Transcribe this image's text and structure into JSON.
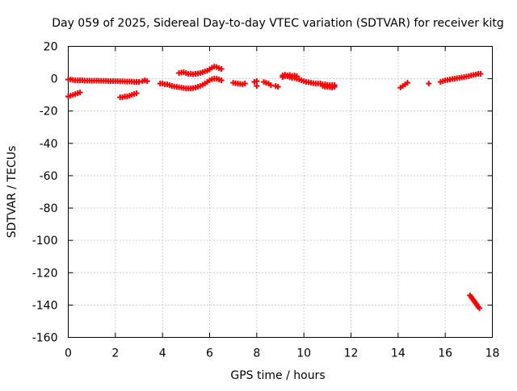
{
  "chart_data": {
    "type": "scatter",
    "title": "Day 059 of 2025, Sidereal Day-to-day VTEC variation (SDTVAR) for receiver kitg",
    "xlabel": "GPS time / hours",
    "ylabel": "SDTVAR / TECUs",
    "xlim": [
      0,
      18
    ],
    "ylim": [
      -160,
      20
    ],
    "xticks": [
      0,
      2,
      4,
      6,
      8,
      10,
      12,
      14,
      16,
      18
    ],
    "yticks": [
      20,
      0,
      -20,
      -40,
      -60,
      -80,
      -100,
      -120,
      -140,
      -160
    ],
    "grid": true,
    "marker": "plus",
    "color": "#ff0000",
    "series": [
      {
        "x": [
          0.0,
          0.1,
          0.2,
          0.3,
          0.4,
          0.5,
          0.6,
          0.7,
          0.8,
          0.9,
          1.0,
          1.1,
          1.2,
          1.3,
          1.4,
          1.5,
          1.6,
          1.7,
          1.8,
          1.9,
          2.0,
          2.1,
          2.2,
          2.3,
          2.4,
          2.5,
          2.6,
          2.7,
          2.8,
          2.9,
          3.0,
          3.15,
          3.25,
          3.35,
          0.0,
          0.1,
          0.2,
          0.3,
          0.4,
          0.5,
          2.2,
          2.3,
          2.4,
          2.5,
          2.6,
          2.7,
          2.8,
          2.9,
          3.9,
          4.0,
          4.1,
          4.2,
          4.3,
          4.4,
          4.5,
          4.6,
          4.7,
          4.8,
          4.9,
          5.0,
          5.1,
          5.2,
          5.3,
          5.4,
          5.5,
          5.6,
          5.7,
          5.8,
          5.9,
          6.0,
          6.1,
          6.2,
          6.3,
          6.4,
          6.5,
          4.7,
          4.8,
          4.9,
          5.0,
          5.1,
          5.2,
          5.3,
          5.4,
          5.5,
          5.6,
          5.7,
          5.8,
          5.9,
          6.0,
          6.1,
          6.2,
          6.3,
          6.4,
          6.5,
          7.0,
          7.1,
          7.2,
          7.3,
          7.4,
          7.5,
          7.9,
          8.0,
          8.0,
          8.3,
          8.4,
          8.5,
          8.6,
          8.8,
          8.9,
          9.1,
          9.2,
          9.3,
          9.4,
          9.5,
          9.6,
          9.7,
          9.8,
          9.9,
          10.0,
          10.1,
          10.2,
          10.3,
          10.4,
          10.5,
          10.6,
          10.7,
          10.8,
          10.9,
          11.0,
          11.1,
          11.2,
          11.3,
          9.1,
          9.2,
          9.3,
          9.4,
          9.5,
          9.6,
          9.7,
          10.8,
          10.9,
          11.0,
          11.1,
          11.2,
          11.3,
          14.1,
          14.2,
          14.3,
          14.4,
          15.3,
          15.8,
          15.9,
          16.0,
          16.1,
          16.2,
          16.3,
          16.4,
          16.5,
          16.6,
          16.7,
          16.8,
          16.9,
          17.0,
          17.1,
          17.2,
          17.3,
          17.4,
          17.5,
          17.05,
          17.1,
          17.15,
          17.2,
          17.25,
          17.3,
          17.35,
          17.4,
          17.45
        ],
        "y": [
          -0.5,
          -0.5,
          -0.8,
          -1.0,
          -1.0,
          -1.0,
          -1.0,
          -1.2,
          -1.2,
          -1.2,
          -1.3,
          -1.2,
          -1.2,
          -1.3,
          -1.3,
          -1.3,
          -1.3,
          -1.5,
          -1.5,
          -1.5,
          -1.5,
          -1.5,
          -1.6,
          -1.6,
          -1.7,
          -1.8,
          -1.7,
          -1.8,
          -2.0,
          -2.0,
          -2.0,
          -1.5,
          -1.0,
          -1.5,
          -11.0,
          -10.5,
          -10.0,
          -9.5,
          -9.0,
          -8.5,
          -11.5,
          -11.5,
          -11.0,
          -11.0,
          -10.5,
          -10.0,
          -9.5,
          -9.0,
          -3.0,
          -3.0,
          -3.5,
          -3.5,
          -4.0,
          -4.5,
          -4.8,
          -5.0,
          -5.3,
          -5.5,
          -5.8,
          -6.0,
          -6.0,
          -6.0,
          -5.8,
          -5.5,
          -5.0,
          -4.5,
          -3.8,
          -3.0,
          -2.0,
          -1.0,
          -0.3,
          0.0,
          0.0,
          -0.5,
          -1.0,
          3.5,
          3.8,
          4.0,
          3.5,
          3.0,
          3.0,
          2.8,
          3.0,
          3.2,
          3.5,
          4.0,
          4.5,
          5.0,
          5.8,
          6.8,
          7.5,
          7.2,
          6.5,
          6.0,
          -2.5,
          -2.8,
          -3.0,
          -3.2,
          -3.5,
          -3.0,
          -2.0,
          -1.5,
          -4.5,
          -2.0,
          -2.5,
          -3.0,
          -4.0,
          -4.5,
          -5.0,
          1.0,
          1.5,
          1.5,
          1.0,
          0.5,
          0.5,
          0.0,
          -0.5,
          -1.0,
          -1.5,
          -2.0,
          -2.2,
          -2.5,
          -2.8,
          -3.0,
          -3.0,
          -3.0,
          -3.5,
          -3.5,
          -3.8,
          -4.0,
          -4.0,
          -4.0,
          2.0,
          2.5,
          2.0,
          2.3,
          1.8,
          2.0,
          1.5,
          -4.5,
          -5.0,
          -5.0,
          -5.2,
          -5.5,
          -5.0,
          -5.5,
          -4.5,
          -3.5,
          -2.5,
          -3.0,
          -2.0,
          -1.5,
          -1.0,
          -0.8,
          -0.5,
          -0.2,
          0.0,
          0.3,
          0.5,
          0.8,
          1.0,
          1.3,
          1.6,
          2.0,
          2.3,
          2.6,
          3.0,
          3.0,
          -134.0,
          -135.0,
          -136.0,
          -137.0,
          -138.0,
          -139.0,
          -140.0,
          -141.0,
          -142.0
        ]
      }
    ]
  }
}
